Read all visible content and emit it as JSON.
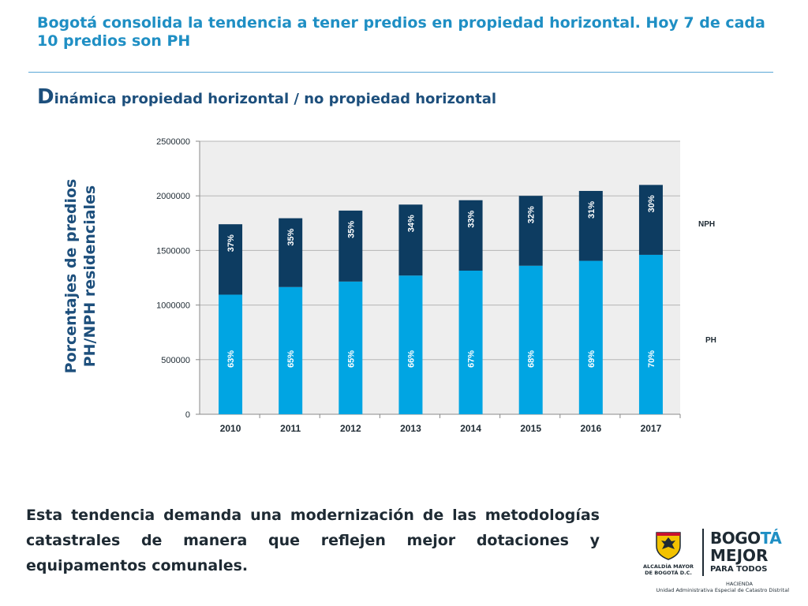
{
  "slide": {
    "title": "Bogotá consolida la tendencia a tener predios en propiedad horizontal. Hoy 7 de cada 10 predios son PH",
    "subtitle_cap": "D",
    "subtitle_rest": "inámica propiedad horizontal / no propiedad horizontal",
    "ylabel_line1": "Porcentajes de predios",
    "ylabel_line2": "PH/NPH residenciales",
    "bottom_text": "Esta tendencia demanda una modernización de las metodologías catastrales de manera que reflejen mejor dotaciones y equipamentos comunales."
  },
  "chart_data": {
    "type": "bar",
    "stacked": true,
    "categories": [
      "2010",
      "2011",
      "2012",
      "2013",
      "2014",
      "2015",
      "2016",
      "2017"
    ],
    "series": [
      {
        "name": "PH",
        "values": [
          1095000,
          1165000,
          1215000,
          1270000,
          1315000,
          1360000,
          1405000,
          1460000
        ],
        "labels": [
          "63%",
          "65%",
          "65%",
          "66%",
          "67%",
          "68%",
          "69%",
          "70%"
        ],
        "color": "#00a5e3"
      },
      {
        "name": "NPH",
        "values": [
          645000,
          630000,
          650000,
          650000,
          645000,
          640000,
          640000,
          640000
        ],
        "labels": [
          "37%",
          "35%",
          "35%",
          "34%",
          "33%",
          "32%",
          "31%",
          "30%"
        ],
        "color": "#0d3c61"
      }
    ],
    "yticks": [
      "0",
      "500000",
      "1000000",
      "1500000",
      "2000000",
      "2500000"
    ],
    "ylim": [
      0,
      2500000
    ],
    "grid": true,
    "legend": "right"
  },
  "logo": {
    "alcaldia_l1": "ALCALDÍA MAYOR",
    "alcaldia_l2": "DE BOGOTÁ D.C.",
    "bogota_part1": "BOGO",
    "bogota_part2": "TÁ",
    "mejor": "MEJOR",
    "para_todos": "PARA TODOS",
    "hacienda": "HACIENDA",
    "unidad": "Unidad Administrativa Especial de Catastro Distrital"
  },
  "colors": {
    "title": "#1f8fc4",
    "subtitle": "#1d4f7c",
    "plot_bg": "#eeeeee",
    "ph": "#00a5e3",
    "nph": "#0d3c61"
  }
}
